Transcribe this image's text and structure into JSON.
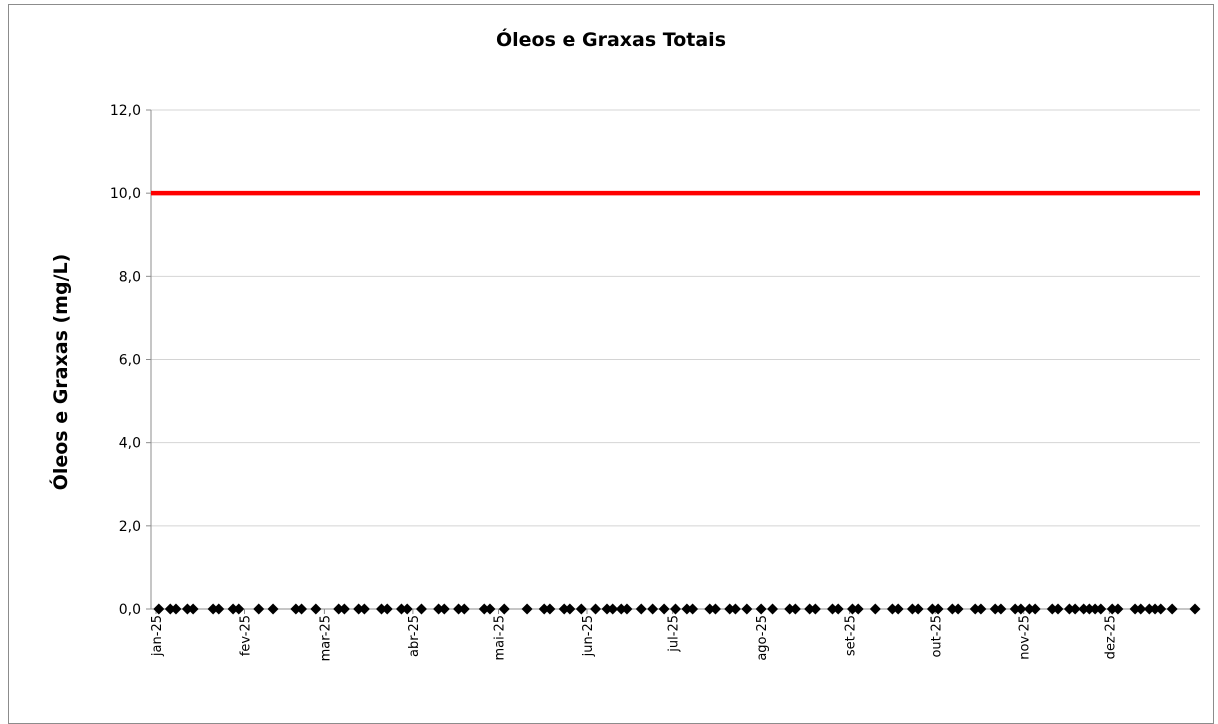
{
  "chart_data": {
    "type": "line",
    "title": "Óleos e Graxas Totais",
    "xlabel": "",
    "ylabel": "Óleos e Graxas (mg/L)",
    "ylim": [
      0,
      12
    ],
    "yticks": [
      "0,0",
      "2,0",
      "4,0",
      "6,0",
      "8,0",
      "10,0",
      "12,0"
    ],
    "xlim": [
      "2025-01-01",
      "2025-12-31"
    ],
    "xticks": [
      {
        "label": "jan-25",
        "date": "2025-01-01"
      },
      {
        "label": "fev-25",
        "date": "2025-02-01"
      },
      {
        "label": "mar-25",
        "date": "2025-03-01"
      },
      {
        "label": "abr-25",
        "date": "2025-04-01"
      },
      {
        "label": "mai-25",
        "date": "2025-05-01"
      },
      {
        "label": "jun-25",
        "date": "2025-06-01"
      },
      {
        "label": "jul-25",
        "date": "2025-07-01"
      },
      {
        "label": "ago-25",
        "date": "2025-08-01"
      },
      {
        "label": "set-25",
        "date": "2025-09-01"
      },
      {
        "label": "out-25",
        "date": "2025-10-01"
      },
      {
        "label": "nov-25",
        "date": "2025-11-01"
      },
      {
        "label": "dez-25",
        "date": "2025-12-01"
      }
    ],
    "grid": true,
    "legend": "none",
    "series": [
      {
        "marker": "diamond",
        "color": "#000000",
        "x": [
          "2025-01-02",
          "2025-01-06",
          "2025-01-08",
          "2025-01-12",
          "2025-01-14",
          "2025-01-21",
          "2025-01-23",
          "2025-01-28",
          "2025-01-30",
          "2025-02-06",
          "2025-02-11",
          "2025-02-19",
          "2025-02-21",
          "2025-02-26",
          "2025-03-06",
          "2025-03-08",
          "2025-03-13",
          "2025-03-15",
          "2025-03-21",
          "2025-03-23",
          "2025-03-28",
          "2025-03-30",
          "2025-04-04",
          "2025-04-10",
          "2025-04-12",
          "2025-04-17",
          "2025-04-19",
          "2025-04-26",
          "2025-04-28",
          "2025-05-03",
          "2025-05-11",
          "2025-05-17",
          "2025-05-19",
          "2025-05-24",
          "2025-05-26",
          "2025-05-30",
          "2025-06-04",
          "2025-06-08",
          "2025-06-10",
          "2025-06-13",
          "2025-06-15",
          "2025-06-20",
          "2025-06-24",
          "2025-06-28",
          "2025-07-02",
          "2025-07-06",
          "2025-07-08",
          "2025-07-14",
          "2025-07-16",
          "2025-07-21",
          "2025-07-23",
          "2025-07-27",
          "2025-08-01",
          "2025-08-05",
          "2025-08-11",
          "2025-08-13",
          "2025-08-18",
          "2025-08-20",
          "2025-08-26",
          "2025-08-28",
          "2025-09-02",
          "2025-09-04",
          "2025-09-10",
          "2025-09-16",
          "2025-09-18",
          "2025-09-23",
          "2025-09-25",
          "2025-09-30",
          "2025-10-02",
          "2025-10-07",
          "2025-10-09",
          "2025-10-15",
          "2025-10-17",
          "2025-10-22",
          "2025-10-24",
          "2025-10-29",
          "2025-10-31",
          "2025-11-03",
          "2025-11-05",
          "2025-11-11",
          "2025-11-13",
          "2025-11-17",
          "2025-11-19",
          "2025-11-22",
          "2025-11-24",
          "2025-11-26",
          "2025-11-28",
          "2025-12-02",
          "2025-12-04",
          "2025-12-10",
          "2025-12-12",
          "2025-12-15",
          "2025-12-17",
          "2025-12-19",
          "2025-12-23",
          "2025-12-31"
        ],
        "y": [
          0,
          0,
          0,
          0,
          0,
          0,
          0,
          0,
          0,
          0,
          0,
          0,
          0,
          0,
          0,
          0,
          0,
          0,
          0,
          0,
          0,
          0,
          0,
          0,
          0,
          0,
          0,
          0,
          0,
          0,
          0,
          0,
          0,
          0,
          0,
          0,
          0,
          0,
          0,
          0,
          0,
          0,
          0,
          0,
          0,
          0,
          0,
          0,
          0,
          0,
          0,
          0,
          0,
          0,
          0,
          0,
          0,
          0,
          0,
          0,
          0,
          0,
          0,
          0,
          0,
          0,
          0,
          0,
          0,
          0,
          0,
          0,
          0,
          0,
          0,
          0,
          0,
          0,
          0,
          0,
          0,
          0,
          0,
          0,
          0,
          0,
          0,
          0,
          0,
          0,
          0,
          0,
          0,
          0,
          0,
          0
        ]
      },
      {
        "color": "#ff0000",
        "x": [
          "2025-01-01",
          "2025-12-31"
        ],
        "y": [
          10,
          10
        ]
      }
    ]
  }
}
